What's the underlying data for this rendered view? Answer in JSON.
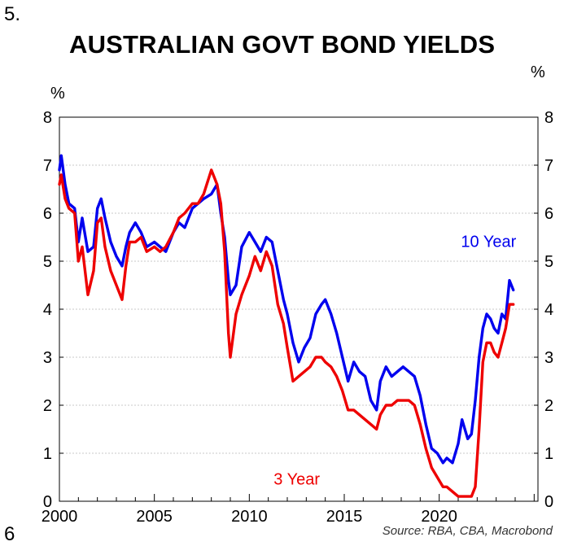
{
  "page_number_top": "5.",
  "page_number_bottom": "6",
  "title": "AUSTRALIAN GOVT BOND YIELDS",
  "unit_left": "%",
  "unit_right": "%",
  "source": "Source: RBA, CBA, Macrobond",
  "chart_data": {
    "type": "line",
    "title": "AUSTRALIAN GOVT BOND YIELDS",
    "xlabel": "",
    "ylabel": "%",
    "xlim": [
      2000,
      2025.2
    ],
    "ylim": [
      0,
      8
    ],
    "x_ticks": [
      2000,
      2005,
      2010,
      2015,
      2020
    ],
    "y_ticks": [
      0,
      1,
      2,
      3,
      4,
      5,
      6,
      7,
      8
    ],
    "grid": true,
    "series": [
      {
        "name": "10 Year",
        "color": "#0000ee",
        "label_at": [
          2022.6,
          5.3
        ],
        "x": [
          2000.0,
          2000.1,
          2000.3,
          2000.5,
          2000.8,
          2001.0,
          2001.2,
          2001.5,
          2001.8,
          2002.0,
          2002.2,
          2002.4,
          2002.7,
          2003.0,
          2003.3,
          2003.5,
          2003.7,
          2004.0,
          2004.3,
          2004.6,
          2005.0,
          2005.3,
          2005.6,
          2006.0,
          2006.3,
          2006.6,
          2007.0,
          2007.3,
          2007.6,
          2008.0,
          2008.3,
          2008.5,
          2008.7,
          2008.9,
          2009.0,
          2009.3,
          2009.6,
          2010.0,
          2010.3,
          2010.6,
          2010.9,
          2011.2,
          2011.5,
          2011.8,
          2012.0,
          2012.3,
          2012.6,
          2012.9,
          2013.2,
          2013.5,
          2013.8,
          2014.0,
          2014.3,
          2014.6,
          2014.9,
          2015.2,
          2015.5,
          2015.8,
          2016.1,
          2016.4,
          2016.7,
          2016.9,
          2017.2,
          2017.5,
          2017.8,
          2018.1,
          2018.4,
          2018.7,
          2019.0,
          2019.3,
          2019.6,
          2019.9,
          2020.2,
          2020.4,
          2020.7,
          2021.0,
          2021.2,
          2021.5,
          2021.7,
          2021.9,
          2022.1,
          2022.3,
          2022.5,
          2022.7,
          2022.9,
          2023.1,
          2023.3,
          2023.5,
          2023.7,
          2023.9
        ],
        "values": [
          6.9,
          7.2,
          6.6,
          6.2,
          6.1,
          5.4,
          5.9,
          5.2,
          5.3,
          6.1,
          6.3,
          5.9,
          5.4,
          5.1,
          4.9,
          5.3,
          5.6,
          5.8,
          5.6,
          5.3,
          5.4,
          5.3,
          5.2,
          5.6,
          5.8,
          5.7,
          6.1,
          6.2,
          6.3,
          6.4,
          6.6,
          6.0,
          5.5,
          4.6,
          4.3,
          4.5,
          5.3,
          5.6,
          5.4,
          5.2,
          5.5,
          5.4,
          4.8,
          4.2,
          3.9,
          3.3,
          2.9,
          3.2,
          3.4,
          3.9,
          4.1,
          4.2,
          3.9,
          3.5,
          3.0,
          2.5,
          2.9,
          2.7,
          2.6,
          2.1,
          1.9,
          2.5,
          2.8,
          2.6,
          2.7,
          2.8,
          2.7,
          2.6,
          2.2,
          1.6,
          1.1,
          1.0,
          0.8,
          0.9,
          0.8,
          1.2,
          1.7,
          1.3,
          1.4,
          2.1,
          3.0,
          3.6,
          3.9,
          3.8,
          3.6,
          3.5,
          3.9,
          3.8,
          4.6,
          4.4
        ]
      },
      {
        "name": "3 Year",
        "color": "#ee0000",
        "label_at": [
          2012.5,
          0.35
        ],
        "x": [
          2000.0,
          2000.1,
          2000.3,
          2000.5,
          2000.8,
          2001.0,
          2001.2,
          2001.5,
          2001.8,
          2002.0,
          2002.2,
          2002.4,
          2002.7,
          2003.0,
          2003.3,
          2003.5,
          2003.7,
          2004.0,
          2004.3,
          2004.6,
          2005.0,
          2005.3,
          2005.6,
          2006.0,
          2006.3,
          2006.6,
          2007.0,
          2007.3,
          2007.6,
          2008.0,
          2008.3,
          2008.5,
          2008.7,
          2008.9,
          2009.0,
          2009.3,
          2009.6,
          2010.0,
          2010.3,
          2010.6,
          2010.9,
          2011.2,
          2011.5,
          2011.8,
          2012.0,
          2012.3,
          2012.6,
          2012.9,
          2013.2,
          2013.5,
          2013.8,
          2014.0,
          2014.3,
          2014.6,
          2014.9,
          2015.2,
          2015.5,
          2015.8,
          2016.1,
          2016.4,
          2016.7,
          2016.9,
          2017.2,
          2017.5,
          2017.8,
          2018.1,
          2018.4,
          2018.7,
          2019.0,
          2019.3,
          2019.6,
          2019.9,
          2020.2,
          2020.4,
          2020.7,
          2021.0,
          2021.2,
          2021.5,
          2021.7,
          2021.9,
          2022.1,
          2022.3,
          2022.5,
          2022.7,
          2022.9,
          2023.1,
          2023.3,
          2023.5,
          2023.7,
          2023.9
        ],
        "values": [
          6.6,
          6.8,
          6.3,
          6.1,
          6.0,
          5.0,
          5.3,
          4.3,
          4.8,
          5.8,
          5.9,
          5.3,
          4.8,
          4.5,
          4.2,
          4.9,
          5.4,
          5.4,
          5.5,
          5.2,
          5.3,
          5.2,
          5.3,
          5.6,
          5.9,
          6.0,
          6.2,
          6.2,
          6.4,
          6.9,
          6.6,
          6.2,
          5.2,
          3.5,
          3.0,
          3.9,
          4.3,
          4.7,
          5.1,
          4.8,
          5.2,
          4.9,
          4.1,
          3.7,
          3.2,
          2.5,
          2.6,
          2.7,
          2.8,
          3.0,
          3.0,
          2.9,
          2.8,
          2.6,
          2.3,
          1.9,
          1.9,
          1.8,
          1.7,
          1.6,
          1.5,
          1.8,
          2.0,
          2.0,
          2.1,
          2.1,
          2.1,
          2.0,
          1.6,
          1.1,
          0.7,
          0.5,
          0.3,
          0.3,
          0.2,
          0.1,
          0.1,
          0.1,
          0.1,
          0.3,
          1.5,
          2.9,
          3.3,
          3.3,
          3.1,
          3.0,
          3.3,
          3.6,
          4.1,
          4.1
        ]
      }
    ]
  }
}
